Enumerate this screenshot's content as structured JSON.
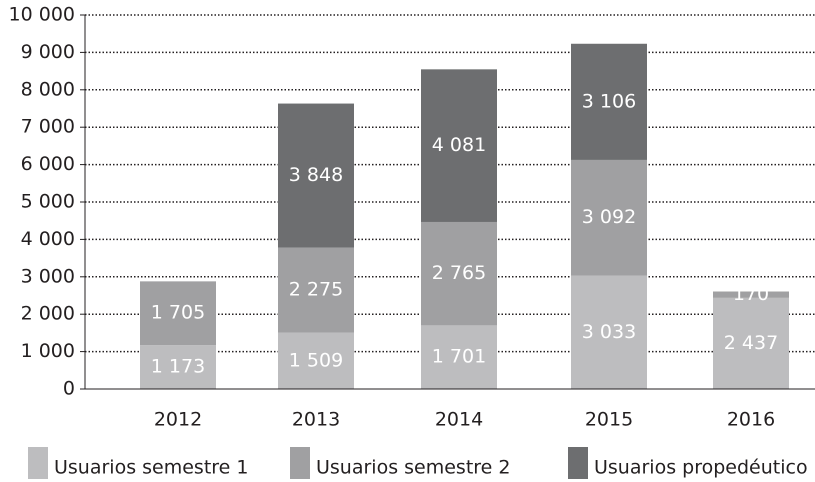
{
  "chart_data": {
    "type": "stacked_bar",
    "categories": [
      "2012",
      "2013",
      "2014",
      "2015",
      "2016"
    ],
    "series": [
      {
        "name": "Usuarios semestre 1",
        "color": "#bdbdbf",
        "values": [
          1173,
          1509,
          1701,
          3033,
          2437
        ],
        "value_labels": [
          "1 173",
          "1 509",
          "1 701",
          "3 033",
          "2 437"
        ]
      },
      {
        "name": "Usuarios semestre 2",
        "color": "#a0a0a2",
        "values": [
          1705,
          2275,
          2765,
          3092,
          170
        ],
        "value_labels": [
          "1 705",
          "2 275",
          "2 765",
          "3 092",
          "170"
        ]
      },
      {
        "name": "Usuarios propedéutico",
        "color": "#6d6e70",
        "values": [
          null,
          3848,
          4081,
          3106,
          null
        ],
        "value_labels": [
          null,
          "3 848",
          "4 081",
          "3 106",
          null
        ]
      }
    ],
    "ylim": [
      0,
      10000
    ],
    "yticks": [
      0,
      {
        "value": 1000,
        "label": "1 000"
      },
      {
        "value": 2000,
        "label": "2 000"
      },
      {
        "value": 3000,
        "label": "3 000"
      },
      {
        "value": 4000,
        "label": "4 000"
      },
      {
        "value": 5000,
        "label": "5 000"
      },
      {
        "value": 6000,
        "label": "6 000"
      },
      {
        "value": 7000,
        "label": "7 000"
      },
      {
        "value": 8000,
        "label": "8 000"
      },
      {
        "value": 9000,
        "label": "9 000"
      },
      {
        "value": 10000,
        "label": "10 000"
      }
    ],
    "grid": true,
    "legend": "bottom"
  }
}
